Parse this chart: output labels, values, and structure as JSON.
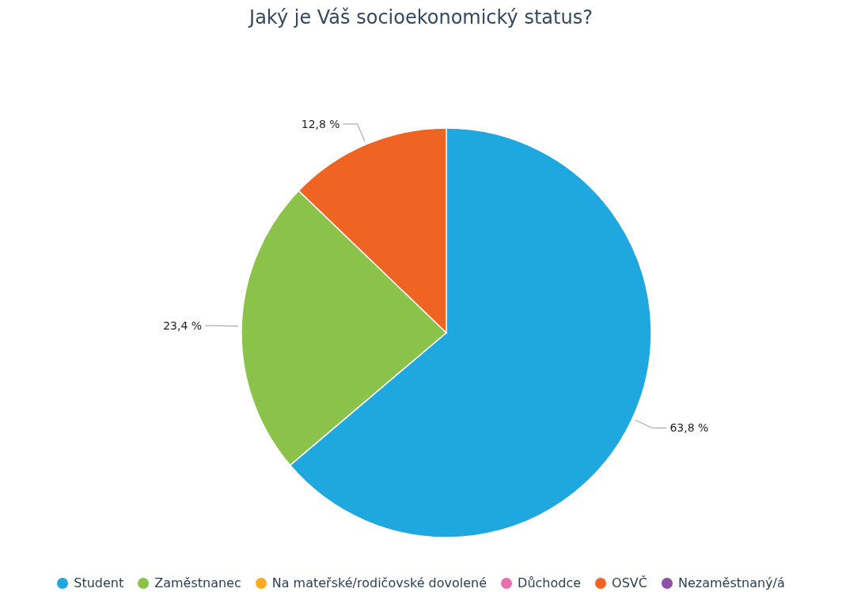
{
  "chart_data": {
    "type": "pie",
    "title": "Jaký je Váš socioekonomický status?",
    "categories": [
      "Student",
      "Zaměstnanec",
      "Na mateřské/rodičovské dovolené",
      "Důchodce",
      "OSVČ",
      "Nezaměstnaný/á"
    ],
    "values": [
      63.8,
      23.4,
      0,
      0,
      12.8,
      0
    ],
    "value_labels": [
      "63,8 %",
      "23,4 %",
      null,
      null,
      "12,8 %",
      null
    ],
    "colors": [
      "#1fa8e0",
      "#8bc34a",
      "#ffab1f",
      "#e96fb0",
      "#f06423",
      "#8e4fa8"
    ],
    "legend": "bottom"
  }
}
